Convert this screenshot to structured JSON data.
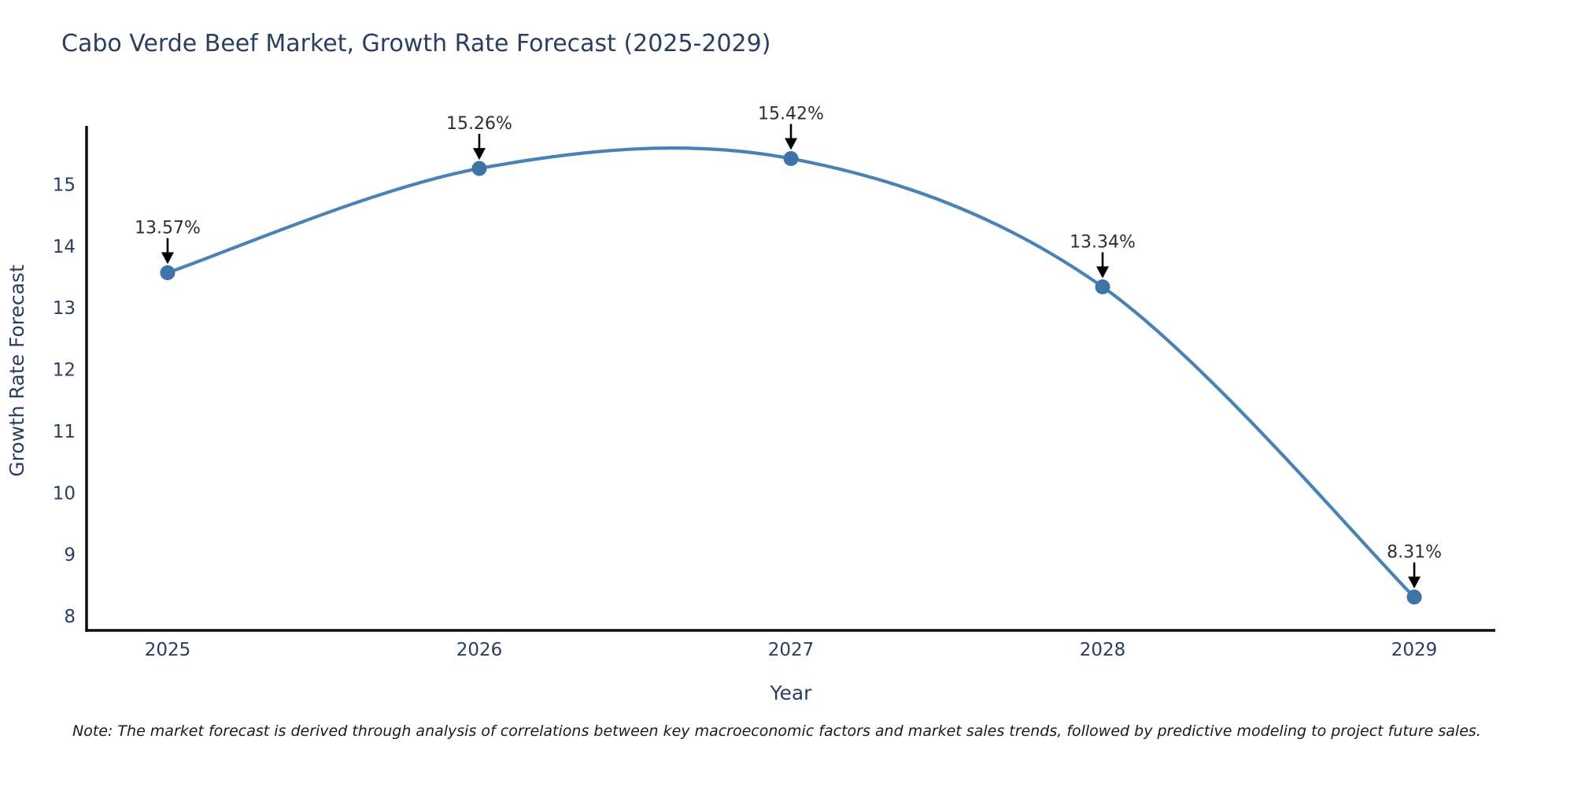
{
  "title": "Cabo Verde Beef Market, Growth Rate Forecast (2025-2029)",
  "note": "Note: The market forecast is derived through analysis of correlations between key macroeconomic factors and market sales trends, followed by predictive modeling to project future sales.",
  "chart_data": {
    "type": "line",
    "title": "Cabo Verde Beef Market, Growth Rate Forecast (2025-2029)",
    "x": [
      2025,
      2026,
      2027,
      2028,
      2029
    ],
    "series": [
      {
        "name": "Growth Rate Forecast",
        "values": [
          13.57,
          15.26,
          15.42,
          13.34,
          8.31
        ]
      }
    ],
    "point_labels": [
      "13.57%",
      "15.26%",
      "15.42%",
      "13.34%",
      "8.31%"
    ],
    "xlabel": "Year",
    "ylabel": "Growth Rate Forecast",
    "xticks": [
      2025,
      2026,
      2027,
      2028,
      2029
    ],
    "yticks": [
      8,
      9,
      10,
      11,
      12,
      13,
      14,
      15
    ],
    "xlim": [
      2024.74,
      2029.26
    ],
    "ylim": [
      7.77,
      15.95
    ],
    "line_shape": "spline",
    "grid": false,
    "legend": "none",
    "colors": {
      "line": "#4a82b6",
      "marker": "#3f74a9",
      "axis": "#0d0d0d",
      "arrow": "#000000",
      "title_text": "#2a3f5f",
      "tick_text": "#2a3f5f",
      "annotation_text": "#2f2f2f"
    }
  }
}
